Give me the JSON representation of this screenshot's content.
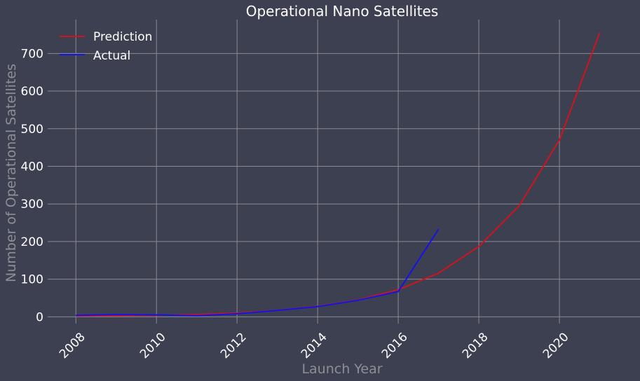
{
  "chart_data": {
    "type": "line",
    "title": "Operational Nano Satellites",
    "xlabel": "Launch Year",
    "ylabel": "Number of Operational Satellites",
    "xlim": [
      2007.3,
      2022.0
    ],
    "ylim": [
      -18,
      790
    ],
    "x_ticks": [
      2008,
      2010,
      2012,
      2014,
      2016,
      2018,
      2020
    ],
    "y_ticks": [
      0,
      100,
      200,
      300,
      400,
      500,
      600,
      700
    ],
    "grid": true,
    "legend_position": "top-left",
    "series": [
      {
        "name": "Prediction",
        "color": "#d0141e",
        "x": [
          2008,
          2009,
          2010,
          2011,
          2012,
          2013,
          2014,
          2015,
          2016,
          2017,
          2018,
          2019,
          2020,
          2021
        ],
        "values": [
          2,
          3,
          4,
          6,
          10,
          17,
          28,
          45,
          72,
          116,
          187,
          295,
          470,
          755
        ]
      },
      {
        "name": "Actual",
        "color": "#1414e6",
        "x": [
          2008,
          2009,
          2010,
          2011,
          2012,
          2013,
          2014,
          2015,
          2016,
          2017
        ],
        "values": [
          4,
          6,
          5,
          3,
          8,
          17,
          27,
          44,
          67,
          233
        ]
      }
    ]
  }
}
